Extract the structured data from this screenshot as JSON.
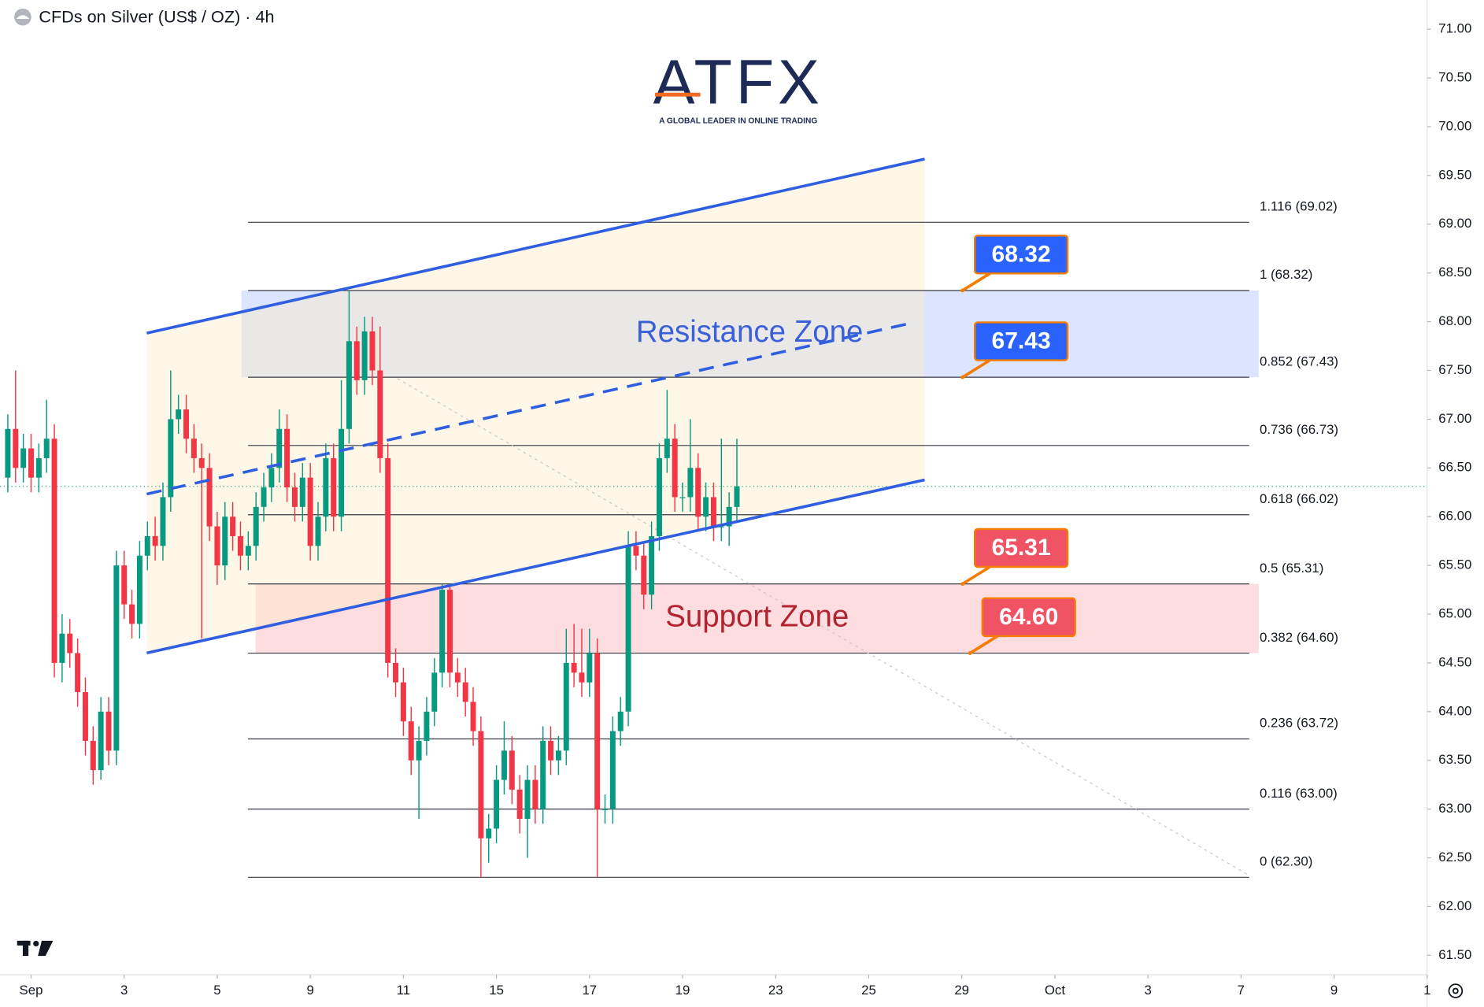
{
  "chart_data": {
    "type": "candlestick",
    "title": "CFDs on Silver (US$ / OZ) · 4h",
    "logo": {
      "name": "ATFX",
      "tagline": "A GLOBAL LEADER IN ONLINE TRADING"
    },
    "xlim": [
      -1,
      183
    ],
    "xticks": [
      {
        "value": 3,
        "label": "Sep"
      },
      {
        "value": 15,
        "label": "3"
      },
      {
        "value": 27,
        "label": "5"
      },
      {
        "value": 39,
        "label": "9"
      },
      {
        "value": 51,
        "label": "11"
      },
      {
        "value": 63,
        "label": "15"
      },
      {
        "value": 75,
        "label": "17"
      },
      {
        "value": 87,
        "label": "19"
      },
      {
        "value": 99,
        "label": "23"
      },
      {
        "value": 111,
        "label": "25"
      },
      {
        "value": 123,
        "label": "29"
      },
      {
        "value": 135,
        "label": "Oct"
      },
      {
        "value": 147,
        "label": "3"
      },
      {
        "value": 159,
        "label": "7"
      },
      {
        "value": 171,
        "label": "9"
      },
      {
        "value": 183,
        "label": "1"
      }
    ],
    "ylim": [
      61.3,
      71.3
    ],
    "yticks": [
      {
        "value": 71,
        "label": "71.00"
      },
      {
        "value": 70.5,
        "label": "70.50"
      },
      {
        "value": 70,
        "label": "70.00"
      },
      {
        "value": 69.5,
        "label": "69.50"
      },
      {
        "value": 69,
        "label": "69.00"
      },
      {
        "value": 68.5,
        "label": "68.50"
      },
      {
        "value": 68,
        "label": "68.00"
      },
      {
        "value": 67.5,
        "label": "67.50"
      },
      {
        "value": 67,
        "label": "67.00"
      },
      {
        "value": 66.5,
        "label": "66.50"
      },
      {
        "value": 66,
        "label": "66.00"
      },
      {
        "value": 65.5,
        "label": "65.50"
      },
      {
        "value": 65,
        "label": "65.00"
      },
      {
        "value": 64.5,
        "label": "64.50"
      },
      {
        "value": 64,
        "label": "64.00"
      },
      {
        "value": 63.5,
        "label": "63.50"
      },
      {
        "value": 63,
        "label": "63.00"
      },
      {
        "value": 62.5,
        "label": "62.50"
      },
      {
        "value": 62,
        "label": "62.00"
      },
      {
        "value": 61.5,
        "label": "61.50"
      }
    ],
    "up_color": "#089981",
    "down_color": "#f23645",
    "open": [
      66.4,
      66.9,
      66.5,
      66.7,
      66.4,
      66.6,
      66.8,
      64.5,
      64.8,
      64.6,
      64.2,
      63.7,
      63.4,
      64.0,
      63.6,
      65.5,
      65.1,
      64.9,
      65.6,
      65.8,
      65.7,
      66.2,
      67.0,
      67.1,
      66.8,
      66.6,
      66.5,
      65.9,
      65.5,
      66.0,
      65.8,
      65.6,
      65.7,
      66.1,
      66.3,
      66.5,
      66.9,
      66.3,
      66.1,
      66.4,
      65.7,
      66.0,
      66.6,
      66.0,
      66.9,
      67.8,
      67.4,
      67.9,
      67.5,
      66.6,
      64.5,
      64.3,
      63.9,
      63.5,
      63.7,
      64.0,
      64.4,
      65.25,
      64.4,
      64.3,
      64.1,
      63.8,
      62.7,
      62.8,
      63.3,
      63.6,
      63.2,
      62.9,
      63.3,
      63.0,
      63.7,
      63.5,
      63.6,
      64.5,
      64.4,
      64.3,
      64.6,
      63.0,
      63.0,
      63.8,
      64.0,
      65.7,
      65.6,
      65.2,
      65.8,
      66.6,
      66.8,
      66.2,
      66.2,
      66.5,
      66.0,
      66.2,
      65.9,
      65.9,
      66.1
    ],
    "high": [
      67.05,
      67.5,
      66.85,
      66.85,
      66.75,
      67.2,
      66.95,
      65.0,
      64.95,
      64.75,
      64.35,
      63.85,
      64.15,
      64.15,
      65.65,
      65.65,
      65.25,
      65.75,
      65.95,
      66.0,
      66.35,
      67.5,
      67.25,
      67.25,
      66.95,
      66.75,
      66.65,
      66.05,
      66.15,
      66.15,
      65.95,
      65.85,
      66.25,
      66.45,
      66.65,
      67.1,
      67.05,
      66.45,
      66.55,
      66.55,
      66.15,
      66.75,
      66.75,
      67.4,
      68.32,
      67.95,
      68.05,
      68.05,
      67.95,
      66.75,
      64.65,
      64.45,
      64.05,
      63.85,
      64.15,
      64.55,
      65.31,
      65.3,
      64.55,
      64.45,
      64.25,
      63.95,
      62.95,
      63.45,
      63.9,
      63.75,
      63.35,
      63.45,
      63.45,
      63.85,
      63.85,
      63.75,
      64.85,
      64.9,
      64.85,
      64.85,
      64.75,
      63.15,
      63.95,
      64.15,
      65.85,
      65.85,
      65.75,
      65.95,
      66.75,
      67.3,
      66.95,
      66.35,
      67.0,
      66.65,
      66.35,
      66.35,
      66.8,
      66.25,
      66.8
    ],
    "low": [
      66.25,
      66.35,
      66.35,
      66.25,
      66.25,
      66.45,
      64.35,
      64.3,
      64.45,
      64.05,
      63.55,
      63.25,
      63.3,
      63.45,
      63.45,
      64.95,
      64.75,
      64.75,
      65.45,
      65.55,
      65.55,
      66.05,
      66.85,
      66.65,
      66.45,
      64.75,
      65.75,
      65.3,
      65.35,
      65.65,
      65.45,
      65.45,
      65.55,
      65.95,
      66.15,
      66.35,
      66.15,
      65.95,
      65.95,
      65.55,
      65.55,
      65.85,
      65.85,
      65.85,
      66.75,
      67.25,
      67.25,
      67.35,
      66.45,
      64.35,
      64.15,
      63.75,
      63.35,
      62.9,
      63.55,
      63.85,
      64.25,
      64.25,
      64.15,
      63.95,
      63.65,
      62.3,
      62.45,
      62.65,
      63.15,
      63.05,
      62.75,
      62.5,
      62.85,
      62.85,
      63.35,
      63.35,
      63.45,
      64.25,
      64.15,
      64.15,
      62.3,
      62.85,
      62.85,
      63.65,
      63.85,
      65.45,
      65.05,
      65.05,
      65.65,
      66.45,
      66.05,
      66.05,
      66.05,
      65.85,
      65.85,
      65.75,
      65.75,
      65.7,
      65.95
    ],
    "close": [
      66.9,
      66.5,
      66.7,
      66.4,
      66.6,
      66.8,
      64.5,
      64.8,
      64.6,
      64.2,
      63.7,
      63.4,
      64.0,
      63.6,
      65.5,
      65.1,
      64.9,
      65.6,
      65.8,
      65.7,
      66.2,
      67.0,
      67.1,
      66.8,
      66.6,
      66.5,
      65.9,
      65.5,
      66.0,
      65.8,
      65.6,
      65.7,
      66.1,
      66.3,
      66.5,
      66.9,
      66.3,
      66.1,
      66.4,
      65.7,
      66.0,
      66.6,
      66.0,
      66.9,
      67.8,
      67.4,
      67.9,
      67.5,
      66.6,
      64.5,
      64.3,
      63.9,
      63.5,
      63.7,
      64.0,
      64.4,
      65.25,
      64.4,
      64.3,
      64.1,
      63.8,
      62.7,
      62.8,
      63.3,
      63.6,
      63.2,
      62.9,
      63.3,
      63.0,
      63.7,
      63.5,
      63.6,
      64.5,
      64.4,
      64.3,
      64.6,
      63.0,
      63.0,
      63.8,
      64.0,
      65.7,
      65.6,
      65.2,
      65.8,
      66.6,
      66.8,
      66.2,
      66.2,
      66.5,
      66.0,
      66.2,
      65.9,
      65.9,
      66.1,
      66.31
    ],
    "last_price": 66.31,
    "fib_levels": [
      {
        "value": 69.02,
        "label": "1.116 (69.02)"
      },
      {
        "value": 68.32,
        "label": "1 (68.32)"
      },
      {
        "value": 67.43,
        "label": "0.852 (67.43)"
      },
      {
        "value": 66.73,
        "label": "0.736 (66.73)"
      },
      {
        "value": 66.02,
        "label": "0.618 (66.02)"
      },
      {
        "value": 65.31,
        "label": "0.5 (65.31)"
      },
      {
        "value": 64.6,
        "label": "0.382 (64.60)"
      },
      {
        "value": 63.72,
        "label": "0.236 (63.72)"
      },
      {
        "value": 63.0,
        "label": "0.116 (63.00)"
      },
      {
        "value": 62.3,
        "label": "0 (62.30)"
      }
    ],
    "zones": [
      {
        "name": "Resistance Zone",
        "range": [
          67.43,
          68.32
        ],
        "color": "#2962ff",
        "text_color": "#3a5fd8"
      },
      {
        "name": "Support Zone",
        "range": [
          64.6,
          65.31
        ],
        "color": "#f23645",
        "text_color": "#b2222f"
      }
    ],
    "callouts": [
      {
        "value": 68.32,
        "label": "68.32",
        "color": "#2962ff"
      },
      {
        "value": 67.43,
        "label": "67.43",
        "color": "#2962ff"
      },
      {
        "value": 65.31,
        "label": "65.31",
        "color": "#f05464"
      },
      {
        "value": 64.6,
        "label": "64.60",
        "color": "#f05464"
      }
    ]
  }
}
